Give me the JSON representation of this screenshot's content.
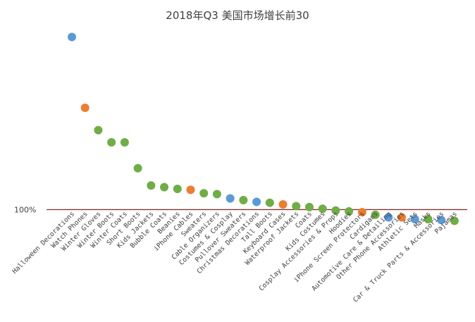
{
  "chart_data": {
    "type": "scatter",
    "title": "2018年Q3 美国市场增长前30",
    "xlabel": "",
    "ylabel": "",
    "grid": false,
    "legend": "none",
    "reference_line": {
      "label": "100%",
      "value": 100,
      "color": "#8B2C2C"
    },
    "colors": {
      "blue": "#5B9BD5",
      "orange": "#ED7D31",
      "green": "#70AD47"
    },
    "ylim": [
      80,
      320
    ],
    "categories": [
      "Halloween Decorations",
      "Watch Phones",
      "Winter Gloves",
      "Winter Boots",
      "Winter Coats",
      "Short Boots",
      "Kids Jackets",
      "Bubble Coats",
      "Beanies",
      "iPhone Cables",
      "Sweaters",
      "Cable Organizers",
      "Costumes & Cosplay",
      "Pullover Sweaters",
      "Christmas Decorations",
      "Tall Boots",
      "Keyboard Cases",
      "Waterproof Jackets",
      "Coats",
      "Kids Costumes",
      "Cosplay Accessories & Props",
      "Hoodies",
      "iPhone Screen Protectors",
      "Cardigans",
      "Automotive Care & Detailing",
      "Other Phone Accessories",
      "Athletic Sets",
      "Masks",
      "Car & Truck Parts & Accessories",
      "Pajamas"
    ],
    "values": [
      300,
      218,
      192,
      178,
      178,
      148,
      128,
      126,
      124,
      123,
      119,
      118,
      113,
      111,
      109,
      108,
      106,
      104,
      103,
      101,
      99,
      98,
      97,
      94,
      91,
      91,
      89,
      89,
      88,
      87
    ],
    "point_colors": [
      "blue",
      "orange",
      "green",
      "green",
      "green",
      "green",
      "green",
      "green",
      "green",
      "orange",
      "green",
      "green",
      "blue",
      "green",
      "blue",
      "green",
      "orange",
      "green",
      "green",
      "green",
      "green",
      "green",
      "orange",
      "green",
      "blue",
      "orange",
      "blue",
      "green",
      "blue",
      "green"
    ]
  }
}
